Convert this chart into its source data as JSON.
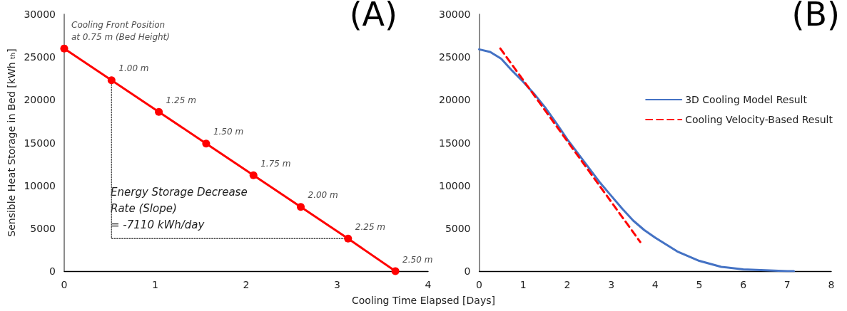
{
  "chart_data": [
    {
      "type": "line",
      "title": "(A)",
      "xlabel": "Cooling Time Elapsed [Days]",
      "ylabel": "Sensible Heat Storage in Bed [kWh $_{th}$]",
      "xlim": [
        0,
        4
      ],
      "xticks": [
        0,
        1,
        2,
        3,
        4
      ],
      "ylim": [
        0,
        30000
      ],
      "yticks": [
        0,
        5000,
        10000,
        15000,
        20000,
        25000,
        30000
      ],
      "grid": false,
      "marker": "circle",
      "line_style": "solid",
      "series": [
        {
          "color": "#ff0000",
          "x": [
            0,
            0.52,
            1.04,
            1.56,
            2.08,
            2.6,
            3.12,
            3.64
          ],
          "values": [
            26000,
            22300,
            18600,
            14900,
            11200,
            7500,
            3800,
            0
          ]
        },
        {
          "color": "#404040",
          "x": [
            0.52,
            0.52,
            3.12
          ],
          "values": [
            21800,
            3800,
            3800
          ],
          "line_style": "dotted",
          "marker": "none"
        }
      ],
      "annotations": [
        {
          "text": "Cooling Front Position\nat 0.75 m (Bed Height)",
          "x": 0,
          "y": 26000
        },
        {
          "text": "1.00 m",
          "x": 0.52,
          "y": 22300
        },
        {
          "text": "1.25 m",
          "x": 1.04,
          "y": 18600
        },
        {
          "text": "1.50 m",
          "x": 1.56,
          "y": 14900
        },
        {
          "text": "1.75 m",
          "x": 2.08,
          "y": 11200
        },
        {
          "text": "2.00 m",
          "x": 2.6,
          "y": 7500
        },
        {
          "text": "2.25 m",
          "x": 3.12,
          "y": 3800
        },
        {
          "text": "2.50 m",
          "x": 3.64,
          "y": 0
        },
        "Energy Storage Decrease\nRate (Slope)\n= -7110 kWh/day"
      ]
    },
    {
      "type": "line",
      "title": "(B)",
      "xlim": [
        0,
        8
      ],
      "xticks": [
        0,
        1,
        2,
        3,
        4,
        5,
        6,
        7,
        8
      ],
      "ylim": [
        0,
        30000
      ],
      "yticks": [
        0,
        5000,
        10000,
        15000,
        20000,
        25000,
        30000
      ],
      "grid": false,
      "marker": "none",
      "legend": "right",
      "line_style": "solid",
      "series": [
        {
          "name": "3D Cooling Model Result",
          "color": "#4472c4",
          "x": [
            0,
            0.25,
            0.5,
            0.75,
            1,
            1.25,
            1.5,
            1.75,
            2,
            2.25,
            2.5,
            2.75,
            3,
            3.25,
            3.5,
            3.75,
            4,
            4.5,
            5,
            5.5,
            6,
            6.5,
            7,
            7.15
          ],
          "values": [
            25900,
            25600,
            24800,
            23400,
            22100,
            20700,
            19100,
            17300,
            15400,
            13700,
            12000,
            10300,
            8800,
            7300,
            5900,
            4800,
            3900,
            2300,
            1200,
            500,
            200,
            100,
            0,
            0
          ]
        },
        {
          "name": "Cooling Velocity-Based Result",
          "color": "#ff0000",
          "x": [
            0.48,
            3.66
          ],
          "values": [
            26000,
            3400
          ],
          "line_style": "dashed"
        }
      ]
    }
  ]
}
